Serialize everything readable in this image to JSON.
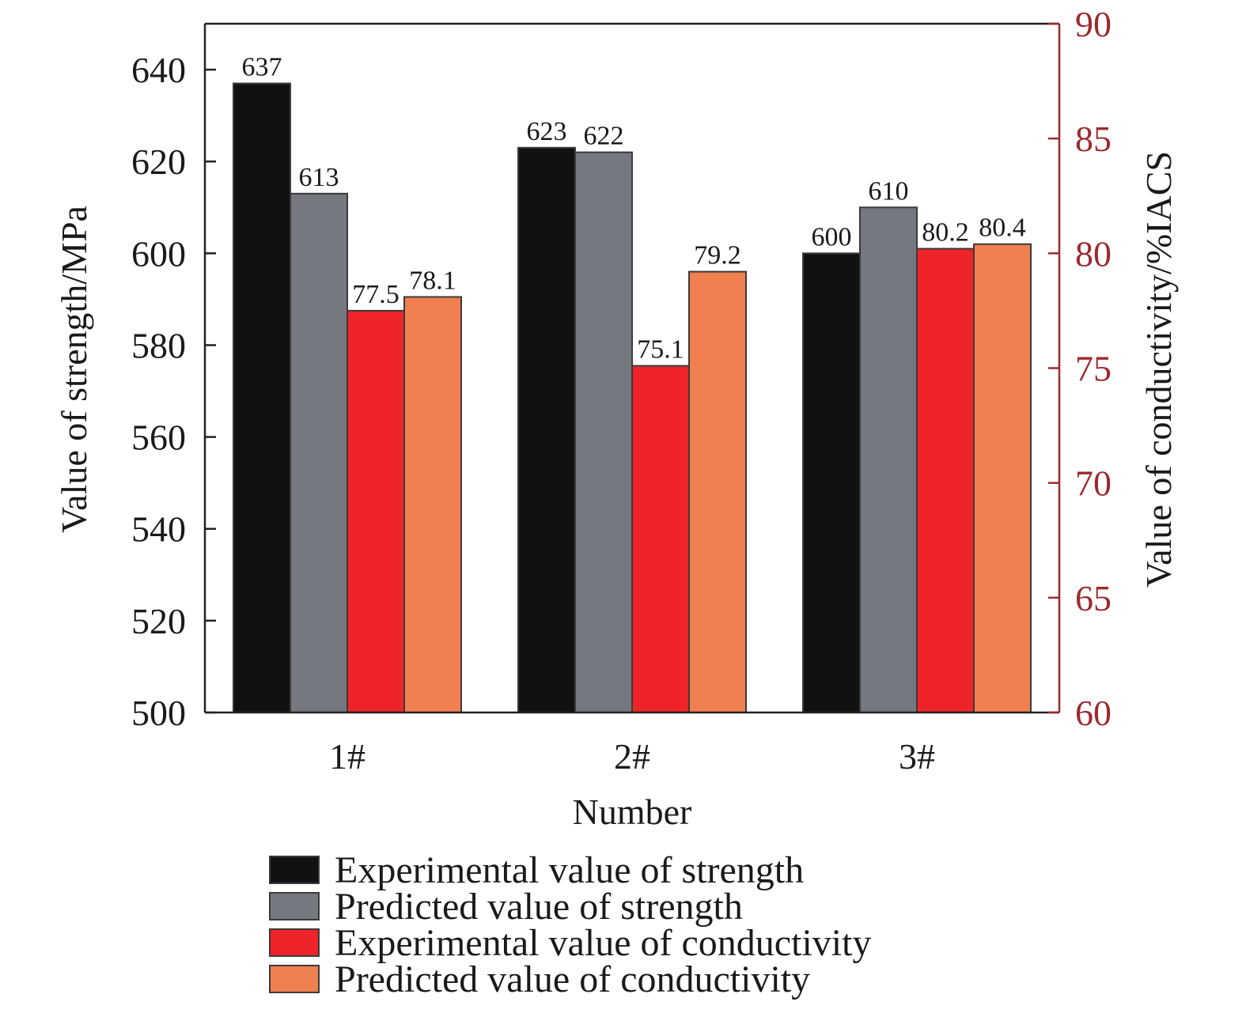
{
  "chart_data": {
    "type": "bar",
    "categories": [
      "1#",
      "2#",
      "3#"
    ],
    "xlabel": "Number",
    "y_left": {
      "label": "Value of strength/MPa",
      "ylim": [
        500,
        650
      ],
      "ticks": [
        500,
        520,
        540,
        560,
        580,
        600,
        620,
        640
      ]
    },
    "y_right": {
      "label": "Value of conductivity/%IACS",
      "ylim": [
        60,
        90
      ],
      "ticks": [
        60,
        65,
        70,
        75,
        80,
        85,
        90
      ],
      "color": "#9b2a2f"
    },
    "series": [
      {
        "name": "Experimental value of strength",
        "axis": "left",
        "color": "#111111",
        "values": [
          637,
          623,
          600
        ],
        "labels": [
          "637",
          "623",
          "600"
        ]
      },
      {
        "name": "Predicted value of strength",
        "axis": "left",
        "color": "#76787f",
        "values": [
          613,
          622,
          610
        ],
        "labels": [
          "613",
          "622",
          "610"
        ]
      },
      {
        "name": "Experimental  value of conductivity",
        "axis": "right",
        "color": "#ee2428",
        "values": [
          77.5,
          75.1,
          80.2
        ],
        "labels": [
          "77.5",
          "75.1",
          "80.2"
        ]
      },
      {
        "name": "Predicted value of conductivity",
        "axis": "right",
        "color": "#f08050",
        "values": [
          78.1,
          79.2,
          80.4
        ],
        "labels": [
          "78.1",
          "79.2",
          "80.4"
        ]
      }
    ],
    "legend_position": "bottom",
    "grid": false
  }
}
